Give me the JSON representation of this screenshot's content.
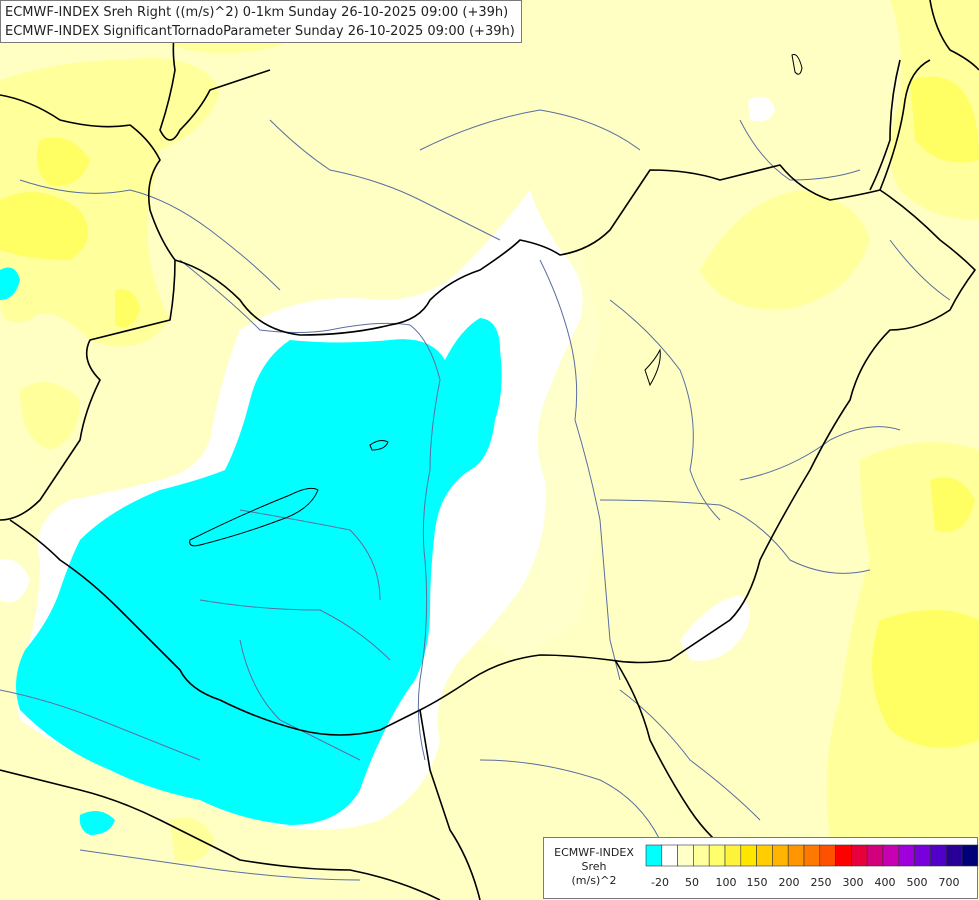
{
  "header": {
    "line1": "ECMWF-INDEX Sreh Right ((m/s)^2) 0-1km Sunday 26-10-2025 09:00 (+39h)",
    "line2": "ECMWF-INDEX SignificantTornadoParameter Sunday 26-10-2025 09:00 (+39h)"
  },
  "legend": {
    "source": "ECMWF-INDEX",
    "variable": "Sreh",
    "unit": "(m/s)^2",
    "colors": [
      "#00ffff",
      "#ffffff",
      "#ffffc8",
      "#ffff9c",
      "#ffff6e",
      "#fff23a",
      "#ffe600",
      "#ffcd00",
      "#ffb400",
      "#ff9600",
      "#ff7800",
      "#ff5000",
      "#ff0000",
      "#e6003c",
      "#d2007d",
      "#c800b4",
      "#a000dc",
      "#7800dc",
      "#5000c8",
      "#280096",
      "#000078"
    ],
    "tick_labels": [
      "-20",
      "50",
      "100",
      "150",
      "200",
      "250",
      "300",
      "400",
      "500",
      "700"
    ]
  },
  "colors": {
    "background": "#ffffc4",
    "low_shear": "#00ffff",
    "neutral": "#ffffff",
    "moderate": "#ffff64",
    "border": "#000000",
    "river": "#5a6ea0"
  }
}
